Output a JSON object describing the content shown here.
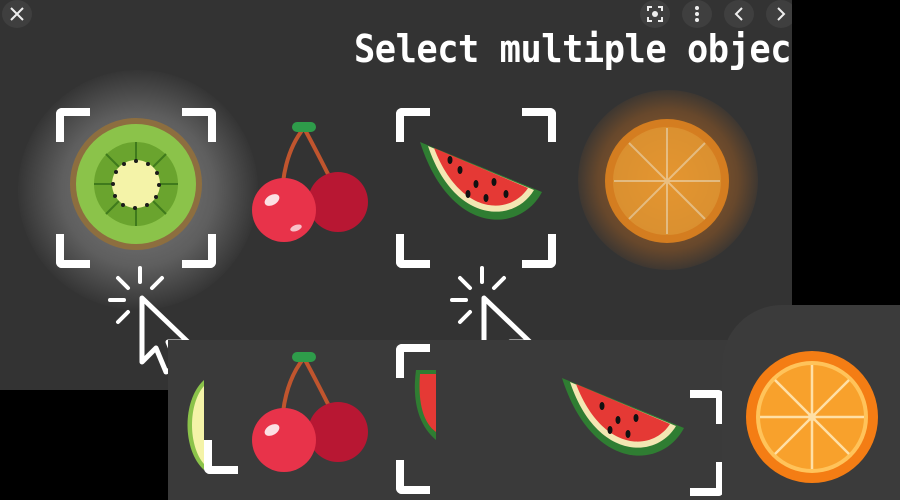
{
  "toolbar": {
    "close_icon": "close-icon",
    "lens_icon": "lens-icon",
    "more_icon": "more-vertical-icon",
    "prev_icon": "chevron-left-icon",
    "next_icon": "chevron-right-icon"
  },
  "title": "Select multiple objects",
  "top_row": [
    {
      "fruit": "kiwi",
      "selected": true
    },
    {
      "fruit": "cherries",
      "selected": false
    },
    {
      "fruit": "watermelon",
      "selected": true
    },
    {
      "fruit": "orange",
      "selected": false
    }
  ],
  "bottom_row": [
    {
      "fruit": "kiwi",
      "selected": false
    },
    {
      "fruit": "cherries",
      "selected": false
    },
    {
      "fruit": "watermelon",
      "selected": true
    },
    {
      "fruit": "watermelon",
      "selected": false
    },
    {
      "fruit": "orange",
      "selected": false
    }
  ],
  "colors": {
    "panel": "#333333",
    "kiwi_green": "#8bc34a",
    "cherry_red": "#e8334a",
    "watermelon_red": "#e53935",
    "orange": "#f5941e"
  }
}
